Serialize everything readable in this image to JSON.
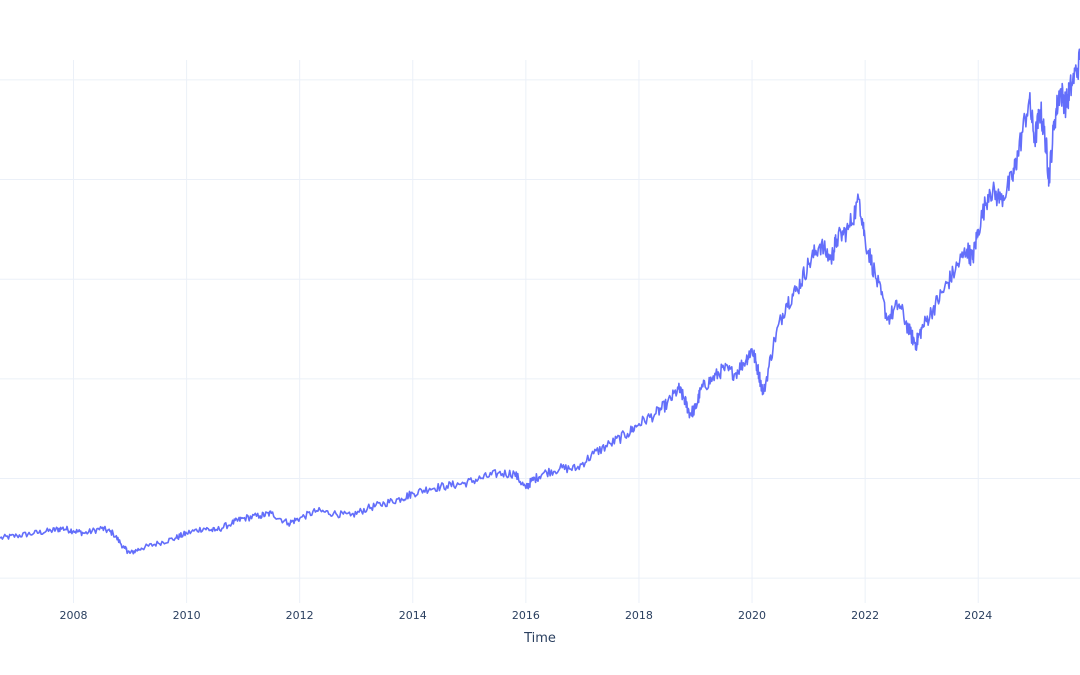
{
  "chart_data": {
    "type": "line",
    "title": "",
    "xlabel": "Time",
    "ylabel": "",
    "xlim": [
      2006.7,
      2025.8
    ],
    "ylim": [
      -0.05,
      1.04
    ],
    "grid": true,
    "x_ticks": [
      2008,
      2010,
      2012,
      2014,
      2016,
      2018,
      2020,
      2022,
      2024
    ],
    "x_tick_labels": [
      "2008",
      "2010",
      "2012",
      "2014",
      "2016",
      "2018",
      "2020",
      "2022",
      "2024"
    ],
    "y_gridlines": [
      0.0,
      0.2,
      0.4,
      0.6,
      0.8,
      1.0
    ],
    "series": [
      {
        "name": "",
        "color": "#636efa",
        "x": [
          2006.7,
          2007.0,
          2007.3,
          2007.6,
          2007.8,
          2008.0,
          2008.2,
          2008.5,
          2008.7,
          2008.9,
          2009.0,
          2009.2,
          2009.5,
          2009.8,
          2010.0,
          2010.3,
          2010.5,
          2010.8,
          2011.0,
          2011.3,
          2011.5,
          2011.8,
          2012.0,
          2012.3,
          2012.6,
          2012.9,
          2013.2,
          2013.5,
          2013.8,
          2014.0,
          2014.3,
          2014.6,
          2014.9,
          2015.2,
          2015.5,
          2015.8,
          2016.0,
          2016.1,
          2016.3,
          2016.6,
          2016.9,
          2017.2,
          2017.5,
          2017.8,
          2018.0,
          2018.3,
          2018.5,
          2018.7,
          2018.8,
          2018.9,
          2019.0,
          2019.1,
          2019.3,
          2019.5,
          2019.7,
          2019.9,
          2020.0,
          2020.1,
          2020.2,
          2020.4,
          2020.6,
          2020.8,
          2021.0,
          2021.2,
          2021.4,
          2021.5,
          2021.7,
          2021.9,
          2022.0,
          2022.2,
          2022.4,
          2022.6,
          2022.8,
          2022.9,
          2023.0,
          2023.2,
          2023.4,
          2023.6,
          2023.8,
          2023.9,
          2024.0,
          2024.2,
          2024.4,
          2024.6,
          2024.7,
          2024.9,
          2025.0,
          2025.1,
          2025.2,
          2025.25,
          2025.35,
          2025.45,
          2025.55,
          2025.65,
          2025.8
        ],
        "y": [
          0.08,
          0.085,
          0.09,
          0.095,
          0.1,
          0.095,
          0.09,
          0.1,
          0.09,
          0.06,
          0.05,
          0.06,
          0.07,
          0.08,
          0.09,
          0.1,
          0.095,
          0.11,
          0.12,
          0.125,
          0.13,
          0.11,
          0.12,
          0.135,
          0.13,
          0.125,
          0.14,
          0.15,
          0.16,
          0.17,
          0.18,
          0.185,
          0.19,
          0.2,
          0.21,
          0.21,
          0.18,
          0.195,
          0.21,
          0.22,
          0.22,
          0.25,
          0.27,
          0.29,
          0.31,
          0.33,
          0.35,
          0.38,
          0.36,
          0.33,
          0.34,
          0.38,
          0.4,
          0.42,
          0.41,
          0.44,
          0.46,
          0.42,
          0.37,
          0.48,
          0.55,
          0.58,
          0.63,
          0.67,
          0.64,
          0.68,
          0.7,
          0.76,
          0.68,
          0.6,
          0.52,
          0.55,
          0.49,
          0.47,
          0.5,
          0.54,
          0.58,
          0.62,
          0.66,
          0.64,
          0.7,
          0.78,
          0.76,
          0.8,
          0.85,
          0.96,
          0.88,
          0.94,
          0.87,
          0.8,
          0.92,
          0.98,
          0.95,
          0.99,
          1.04
        ]
      }
    ]
  }
}
